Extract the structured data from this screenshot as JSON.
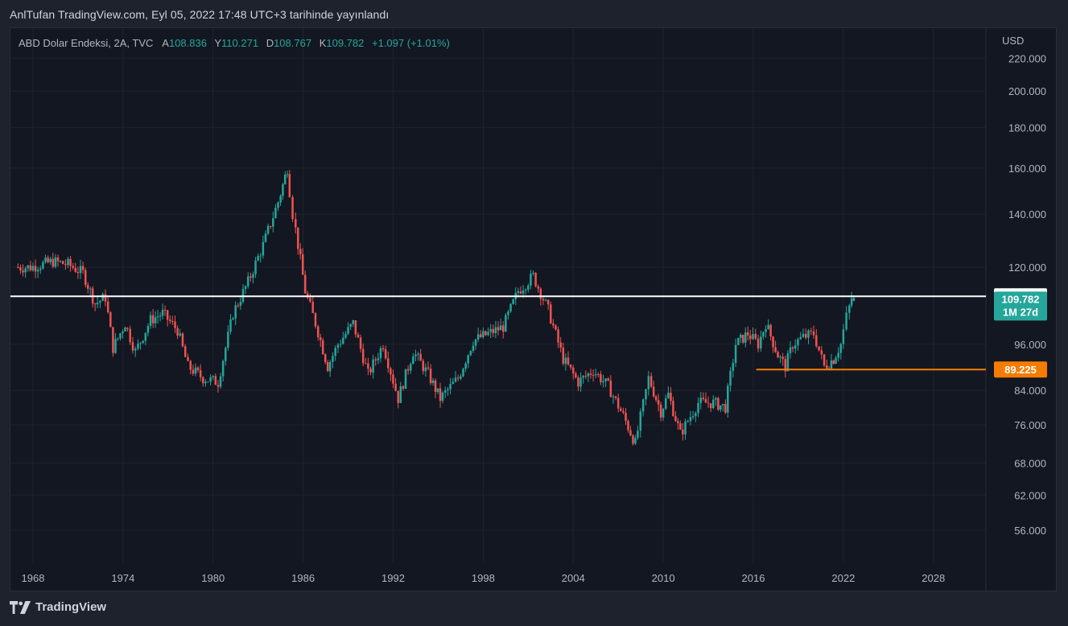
{
  "header": {
    "published": "AnlTufan TradingView.com, Eyl 05, 2022 17:48 UTC+3 tarihinde yayınlandı"
  },
  "legend": {
    "symbol": "ABD Dolar Endeksi, 2A, TVC",
    "open_label": "A",
    "open": "108.836",
    "high_label": "Y",
    "high": "110.271",
    "low_label": "D",
    "low": "108.767",
    "close_label": "K",
    "close": "109.782",
    "change": "+1.097 (+1.01%)"
  },
  "footer": {
    "brand": "TradingView"
  },
  "colors": {
    "background": "#131722",
    "up": "#26a69a",
    "down": "#ef5350",
    "support_line": "#f57c00",
    "resistance_line": "#ffffff"
  },
  "chart_data": {
    "type": "candlestick",
    "title": "ABD Dolar Endeksi, 2A, TVC",
    "ylabel": "USD",
    "y_scale": "log",
    "ylim": [
      51,
      240
    ],
    "xlim": [
      1966.5,
      2031.5
    ],
    "y_ticks": [
      "220.000",
      "200.000",
      "180.000",
      "160.000",
      "140.000",
      "120.000",
      "96.000",
      "84.000",
      "76.000",
      "68.000",
      "62.000",
      "56.000"
    ],
    "x_ticks": [
      "1968",
      "1974",
      "1980",
      "1986",
      "1992",
      "1998",
      "2004",
      "2010",
      "2016",
      "2022",
      "2028"
    ],
    "horizontal_lines": [
      {
        "label": "110.319",
        "value": 110.319,
        "color": "#ffffff",
        "from": 1966.5,
        "to": 2031.5
      },
      {
        "label": "89.225",
        "value": 89.225,
        "color": "#f57c00",
        "from": 2016.2,
        "to": 2031.5
      }
    ],
    "last_price": {
      "value": "109.782",
      "countdown": "1M 27d"
    },
    "series": [
      {
        "name": "ABD Dolar Endeksi",
        "points": [
          {
            "t": 1967.0,
            "v": 120
          },
          {
            "t": 1968.0,
            "v": 120
          },
          {
            "t": 1969.5,
            "v": 122
          },
          {
            "t": 1970.5,
            "v": 121
          },
          {
            "t": 1971.5,
            "v": 118
          },
          {
            "t": 1972.3,
            "v": 108
          },
          {
            "t": 1973.0,
            "v": 110
          },
          {
            "t": 1973.5,
            "v": 95
          },
          {
            "t": 1974.3,
            "v": 102
          },
          {
            "t": 1975.0,
            "v": 94
          },
          {
            "t": 1976.0,
            "v": 103
          },
          {
            "t": 1976.8,
            "v": 105
          },
          {
            "t": 1977.8,
            "v": 100
          },
          {
            "t": 1978.5,
            "v": 90
          },
          {
            "t": 1979.5,
            "v": 87
          },
          {
            "t": 1980.5,
            "v": 86
          },
          {
            "t": 1981.5,
            "v": 105
          },
          {
            "t": 1982.5,
            "v": 115
          },
          {
            "t": 1983.5,
            "v": 128
          },
          {
            "t": 1984.5,
            "v": 145
          },
          {
            "t": 1985.1,
            "v": 160
          },
          {
            "t": 1985.5,
            "v": 140
          },
          {
            "t": 1986.3,
            "v": 112
          },
          {
            "t": 1987.0,
            "v": 102
          },
          {
            "t": 1987.8,
            "v": 90
          },
          {
            "t": 1988.5,
            "v": 96
          },
          {
            "t": 1989.5,
            "v": 102
          },
          {
            "t": 1990.5,
            "v": 88
          },
          {
            "t": 1991.5,
            "v": 96
          },
          {
            "t": 1992.5,
            "v": 82
          },
          {
            "t": 1993.5,
            "v": 94
          },
          {
            "t": 1994.5,
            "v": 88
          },
          {
            "t": 1995.3,
            "v": 82
          },
          {
            "t": 1996.5,
            "v": 87
          },
          {
            "t": 1997.5,
            "v": 97
          },
          {
            "t": 1998.5,
            "v": 99
          },
          {
            "t": 1999.5,
            "v": 101
          },
          {
            "t": 2000.5,
            "v": 112
          },
          {
            "t": 2001.5,
            "v": 117
          },
          {
            "t": 2002.5,
            "v": 106
          },
          {
            "t": 2003.5,
            "v": 92
          },
          {
            "t": 2004.5,
            "v": 86
          },
          {
            "t": 2005.5,
            "v": 89
          },
          {
            "t": 2006.5,
            "v": 85
          },
          {
            "t": 2007.5,
            "v": 78
          },
          {
            "t": 2008.3,
            "v": 72
          },
          {
            "t": 2009.2,
            "v": 87
          },
          {
            "t": 2010.0,
            "v": 79
          },
          {
            "t": 2010.5,
            "v": 83
          },
          {
            "t": 2011.3,
            "v": 74
          },
          {
            "t": 2012.5,
            "v": 81
          },
          {
            "t": 2013.5,
            "v": 81
          },
          {
            "t": 2014.3,
            "v": 80
          },
          {
            "t": 2015.0,
            "v": 96
          },
          {
            "t": 2015.8,
            "v": 99
          },
          {
            "t": 2016.5,
            "v": 96
          },
          {
            "t": 2017.0,
            "v": 102
          },
          {
            "t": 2017.8,
            "v": 93
          },
          {
            "t": 2018.3,
            "v": 90
          },
          {
            "t": 2018.8,
            "v": 96
          },
          {
            "t": 2019.5,
            "v": 98
          },
          {
            "t": 2020.2,
            "v": 99
          },
          {
            "t": 2020.9,
            "v": 90
          },
          {
            "t": 2021.5,
            "v": 92
          },
          {
            "t": 2022.0,
            "v": 96
          },
          {
            "t": 2022.4,
            "v": 104
          },
          {
            "t": 2022.7,
            "v": 109.782
          }
        ]
      }
    ]
  }
}
